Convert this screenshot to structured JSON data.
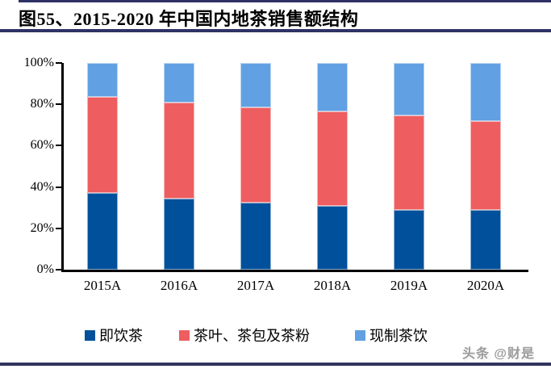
{
  "page": {
    "title": "图55、2015-2020 年中国内地茶销售额结构",
    "watermark": "头条 @财是"
  },
  "colors": {
    "rule_navy": "#2f3166",
    "axis_black": "#000000",
    "watermark_gray": "#9b9b9b",
    "series_rtd_tea": "#01509b",
    "series_leaf_tea": "#ee5d5f",
    "series_fresh_tea": "#61a0e2"
  },
  "chart_data": {
    "type": "bar",
    "stacked": true,
    "title": "2015-2020 年中国内地茶销售额结构",
    "categories": [
      "2015A",
      "2016A",
      "2017A",
      "2018A",
      "2019A",
      "2020A"
    ],
    "series": [
      {
        "name": "即饮茶",
        "color": "#01509b",
        "values": [
          37,
          34.5,
          32.5,
          31,
          29,
          29
        ]
      },
      {
        "name": "茶叶、茶包及茶粉",
        "color": "#ee5d5f",
        "values": [
          46.5,
          46.5,
          46,
          45.5,
          45.5,
          43
        ]
      },
      {
        "name": "现制茶饮",
        "color": "#61a0e2",
        "values": [
          16.5,
          19,
          21.5,
          23.5,
          25.5,
          28
        ]
      }
    ],
    "xlabel": "",
    "ylabel": "",
    "ylim": [
      0,
      100
    ],
    "ytick_labels": [
      "0%",
      "20%",
      "40%",
      "60%",
      "80%",
      "100%"
    ],
    "grid": false,
    "legend_position": "bottom"
  }
}
